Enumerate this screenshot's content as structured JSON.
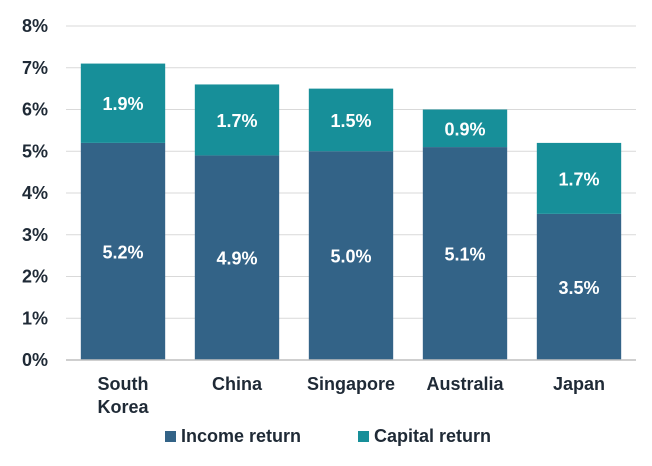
{
  "chart_data": {
    "type": "bar",
    "stacked": true,
    "categories": [
      [
        "South",
        "Korea"
      ],
      [
        "China"
      ],
      [
        "Singapore"
      ],
      [
        "Australia"
      ],
      [
        "Japan"
      ]
    ],
    "series": [
      {
        "name": "Income return",
        "color": "#336387",
        "values": [
          5.2,
          4.9,
          5.0,
          5.1,
          3.5
        ],
        "labels": [
          "5.2%",
          "4.9%",
          "5.0%",
          "5.1%",
          "3.5%"
        ]
      },
      {
        "name": "Capital return",
        "color": "#178f99",
        "values": [
          1.9,
          1.7,
          1.5,
          0.9,
          1.7
        ],
        "labels": [
          "1.9%",
          "1.7%",
          "1.5%",
          "0.9%",
          "1.7%"
        ]
      }
    ],
    "y_ticks": [
      "0%",
      "1%",
      "2%",
      "3%",
      "4%",
      "5%",
      "6%",
      "7%",
      "8%"
    ],
    "ylim": [
      0,
      8
    ],
    "grid": true,
    "legend_position": "bottom"
  }
}
